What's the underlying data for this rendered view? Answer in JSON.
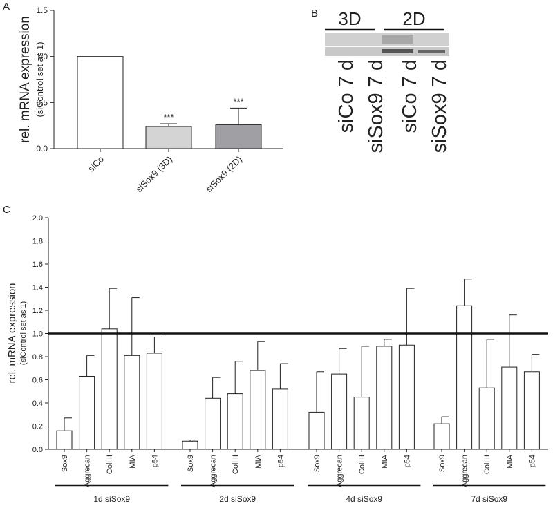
{
  "chart_data": [
    {
      "type": "bar",
      "panel_label": "A",
      "ylabel": "rel. mRNA expression",
      "ylabel_sub": "(siControl set as 1)",
      "categories": [
        "siCo",
        "siSox9 (3D)",
        "siSox9 (2D)"
      ],
      "values": [
        1.0,
        0.24,
        0.26
      ],
      "errors": [
        null,
        0.03,
        0.18
      ],
      "colors": [
        "#ffffff",
        "#d4d4d4",
        "#a0a0a4"
      ],
      "annotations": [
        null,
        "***",
        "***"
      ],
      "ylim": [
        0,
        1.5
      ],
      "yticks": [
        {
          "value": 0,
          "label": "0.0"
        },
        0.5,
        {
          "value": 1.0,
          "label": "1.0"
        },
        1.5
      ]
    },
    {
      "type": "grouped-bar",
      "panel_label": "C",
      "ylabel": "rel. mRNA expression",
      "ylabel_sub": "(siControl set as 1)",
      "groups": [
        {
          "name": "1d siSox9",
          "categories": [
            "Sox9",
            "Aggrecan",
            "Coll II",
            "MIA",
            "p54"
          ],
          "values": [
            0.16,
            0.63,
            1.04,
            0.81,
            0.83
          ],
          "errors": [
            0.11,
            0.18,
            0.35,
            0.5,
            0.14
          ]
        },
        {
          "name": "2d siSox9",
          "categories": [
            "Sox9",
            "Aggrecan",
            "Coll II",
            "MIA",
            "p54"
          ],
          "values": [
            0.07,
            0.44,
            0.48,
            0.68,
            0.52
          ],
          "errors": [
            0.01,
            0.18,
            0.28,
            0.25,
            0.22
          ]
        },
        {
          "name": "4d siSox9",
          "categories": [
            "Sox9",
            "Aggrecan",
            "Coll II",
            "MIA",
            "p54"
          ],
          "values": [
            0.32,
            0.65,
            0.45,
            0.89,
            0.9
          ],
          "errors": [
            0.35,
            0.22,
            0.44,
            0.06,
            0.49
          ]
        },
        {
          "name": "7d siSox9",
          "categories": [
            "Sox9",
            "Aggrecan",
            "Coll II",
            "MIA",
            "p54"
          ],
          "values": [
            0.22,
            1.24,
            0.53,
            0.71,
            0.67
          ],
          "errors": [
            0.06,
            0.23,
            0.42,
            0.45,
            0.15
          ]
        }
      ],
      "reference_line": 1.0,
      "ylim": [
        0,
        2.0
      ],
      "yticks": [
        {
          "value": 0,
          "label": "0.0"
        },
        0.2,
        0.4,
        0.6,
        0.8,
        {
          "value": 1.0,
          "label": "1.0"
        },
        1.2,
        1.4,
        1.6,
        1.8,
        {
          "value": 2.0,
          "label": "2.0"
        }
      ]
    }
  ],
  "blot": {
    "panel_label": "B",
    "conditions": [
      "3D",
      "2D"
    ],
    "lanes": [
      "siCo 7 d",
      "siSox9 7 d",
      "siCo 7 d",
      "siSox9 7 d"
    ]
  }
}
